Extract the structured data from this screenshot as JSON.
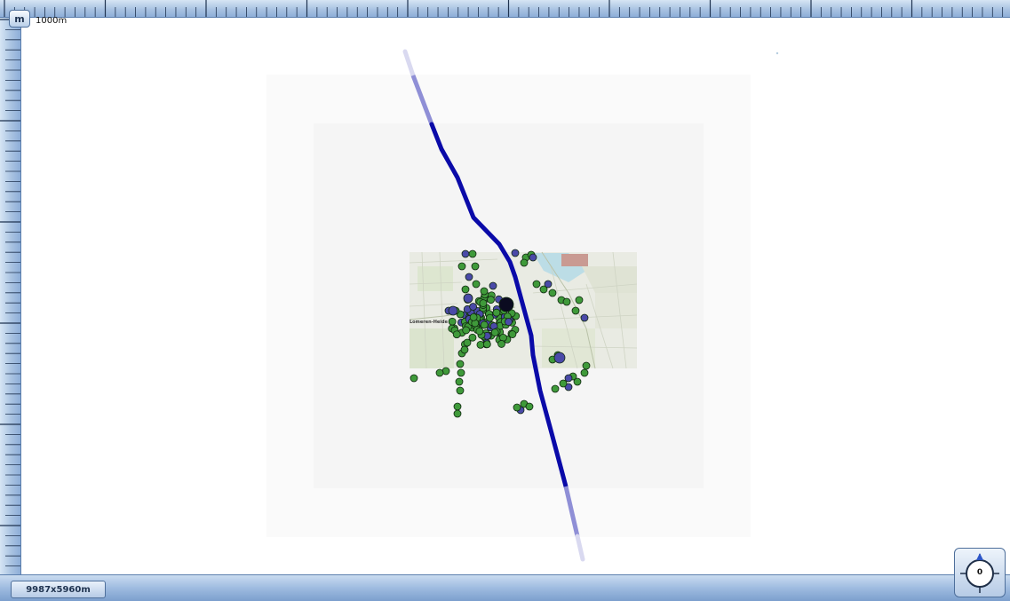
{
  "toolbar": {
    "unit_button_label": "m",
    "scale_label": "1000m"
  },
  "status": {
    "dimensions_label": "9987x5960m"
  },
  "compass": {
    "heading_label": "0",
    "heading_degrees": 0,
    "icon": "compass-icon"
  },
  "map": {
    "place_label": "Lomeren-Heide",
    "colors": {
      "route": "#0a0aa8",
      "route_faded": "#8f8fd6",
      "marker_green": "#3f9a3a",
      "marker_blue": "#4a4aa8",
      "marker_dark": "#0b0b20",
      "background": "#ffffff",
      "overlay_outer": "#fafafa",
      "overlay_inner": "#f5f5f5"
    }
  }
}
